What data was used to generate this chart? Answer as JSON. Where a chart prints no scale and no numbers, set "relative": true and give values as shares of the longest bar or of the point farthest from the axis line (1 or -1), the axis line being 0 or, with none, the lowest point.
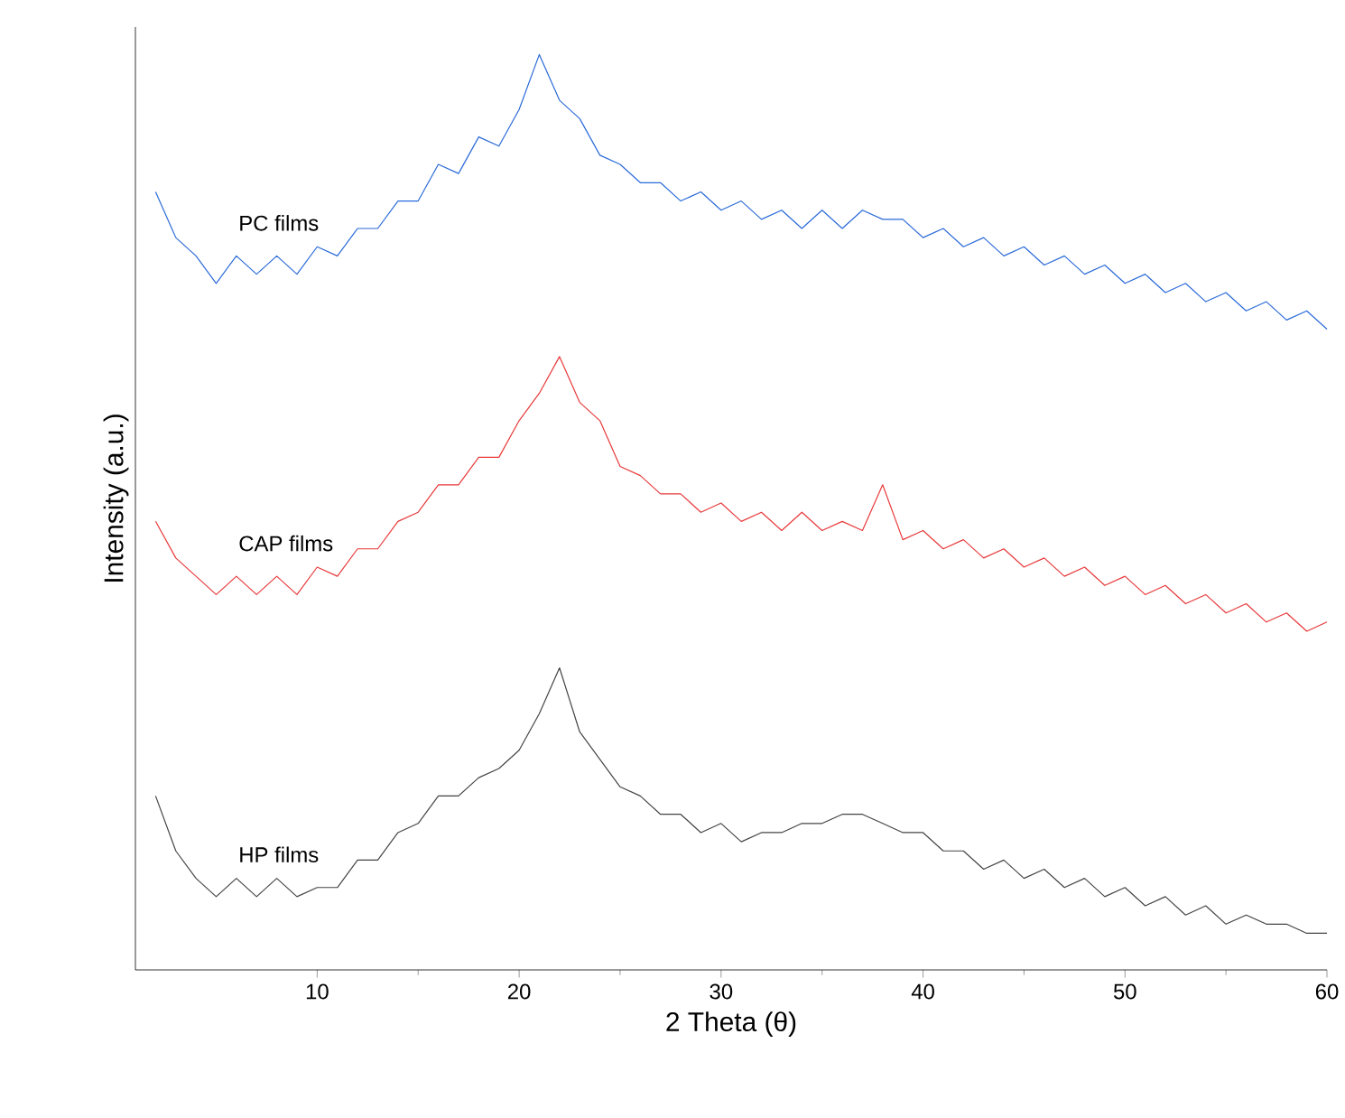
{
  "chart_data": {
    "type": "line",
    "xlabel": "2 Theta (θ)",
    "ylabel": "Intensity (a.u.)",
    "relative": true,
    "xlim": [
      1,
      60
    ],
    "xticks": [
      10,
      20,
      30,
      40,
      50,
      60
    ],
    "x": [
      2,
      3,
      4,
      5,
      6,
      7,
      8,
      9,
      10,
      11,
      12,
      13,
      14,
      15,
      16,
      17,
      18,
      19,
      20,
      21,
      22,
      23,
      24,
      25,
      26,
      27,
      28,
      29,
      30,
      31,
      32,
      33,
      34,
      35,
      36,
      37,
      38,
      39,
      40,
      41,
      42,
      43,
      44,
      45,
      46,
      47,
      48,
      49,
      50,
      51,
      52,
      53,
      54,
      55,
      56,
      57,
      58,
      59,
      60
    ],
    "series": [
      {
        "name": "PC films",
        "color": "#2a6ad9",
        "values": [
          0.85,
          0.8,
          0.78,
          0.75,
          0.78,
          0.76,
          0.78,
          0.76,
          0.79,
          0.78,
          0.81,
          0.81,
          0.84,
          0.84,
          0.88,
          0.87,
          0.91,
          0.9,
          0.94,
          1.0,
          0.95,
          0.93,
          0.89,
          0.88,
          0.86,
          0.86,
          0.84,
          0.85,
          0.83,
          0.84,
          0.82,
          0.83,
          0.81,
          0.83,
          0.81,
          0.83,
          0.82,
          0.82,
          0.8,
          0.81,
          0.79,
          0.8,
          0.78,
          0.79,
          0.77,
          0.78,
          0.76,
          0.77,
          0.75,
          0.76,
          0.74,
          0.75,
          0.73,
          0.74,
          0.72,
          0.73,
          0.71,
          0.72,
          0.7
        ]
      },
      {
        "name": "CAP films",
        "color": "#e8393a",
        "values": [
          0.49,
          0.45,
          0.43,
          0.41,
          0.43,
          0.41,
          0.43,
          0.41,
          0.44,
          0.43,
          0.46,
          0.46,
          0.49,
          0.5,
          0.53,
          0.53,
          0.56,
          0.56,
          0.6,
          0.63,
          0.67,
          0.62,
          0.6,
          0.55,
          0.54,
          0.52,
          0.52,
          0.5,
          0.51,
          0.49,
          0.5,
          0.48,
          0.5,
          0.48,
          0.49,
          0.48,
          0.53,
          0.47,
          0.48,
          0.46,
          0.47,
          0.45,
          0.46,
          0.44,
          0.45,
          0.43,
          0.44,
          0.42,
          0.43,
          0.41,
          0.42,
          0.4,
          0.41,
          0.39,
          0.4,
          0.38,
          0.39,
          0.37,
          0.38
        ]
      },
      {
        "name": "HP films",
        "color": "#444444",
        "values": [
          0.19,
          0.13,
          0.1,
          0.08,
          0.1,
          0.08,
          0.1,
          0.08,
          0.09,
          0.09,
          0.12,
          0.12,
          0.15,
          0.16,
          0.19,
          0.19,
          0.21,
          0.22,
          0.24,
          0.28,
          0.33,
          0.26,
          0.23,
          0.2,
          0.19,
          0.17,
          0.17,
          0.15,
          0.16,
          0.14,
          0.15,
          0.15,
          0.16,
          0.16,
          0.17,
          0.17,
          0.16,
          0.15,
          0.15,
          0.13,
          0.13,
          0.11,
          0.12,
          0.1,
          0.11,
          0.09,
          0.1,
          0.08,
          0.09,
          0.07,
          0.08,
          0.06,
          0.07,
          0.05,
          0.06,
          0.05,
          0.05,
          0.04,
          0.04
        ]
      }
    ]
  }
}
